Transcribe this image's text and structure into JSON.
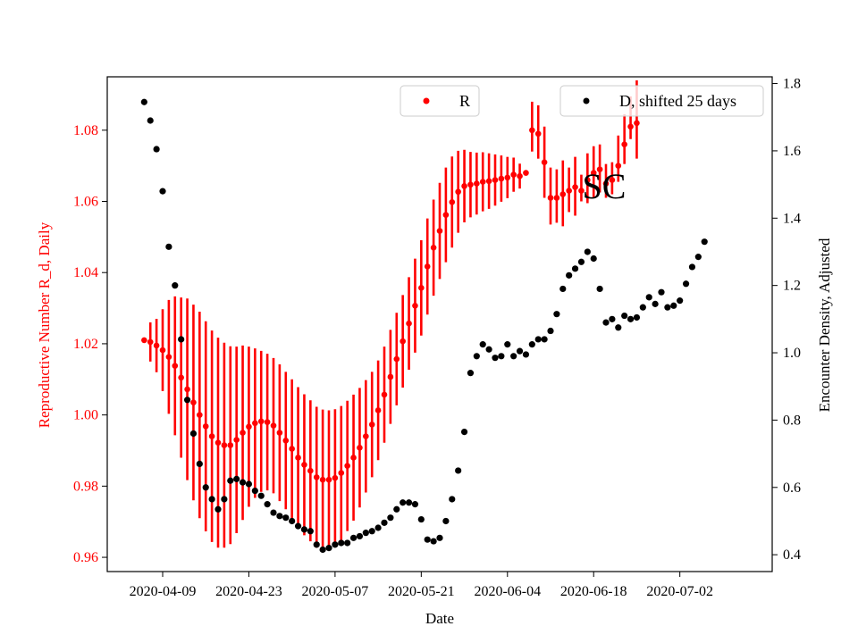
{
  "chart_data": {
    "type": "scatter",
    "annotation": "SC",
    "xlabel": "Date",
    "ylabel_left": "Reproductive Number R_d, Daily",
    "ylabel_right": "Encounter Density, Adjusted",
    "x_range": [
      "2020-03-31",
      "2020-07-17"
    ],
    "ylim_left": [
      0.956,
      1.095
    ],
    "ylim_right": [
      0.35,
      1.82
    ],
    "x_ticks": [
      "2020-04-09",
      "2020-04-23",
      "2020-05-07",
      "2020-05-21",
      "2020-06-04",
      "2020-06-18",
      "2020-07-02"
    ],
    "y_ticks_left": [
      "0.96",
      "0.98",
      "1.00",
      "1.02",
      "1.04",
      "1.06",
      "1.08"
    ],
    "y_ticks_right": [
      "0.4",
      "0.6",
      "0.8",
      "1.0",
      "1.2",
      "1.4",
      "1.6",
      "1.8"
    ],
    "colors": {
      "R": "#ff0000",
      "D": "#000000",
      "left_axis": "#ff0000",
      "right_axis": "#000000"
    },
    "legend_R": {
      "label": "R",
      "placement": "top-center"
    },
    "legend_D": {
      "label": "D, shifted 25 days",
      "placement": "top-right"
    },
    "series_R": {
      "name": "R",
      "start": "2020-04-06",
      "values": [
        1.021,
        1.0205,
        1.0195,
        1.0182,
        1.0163,
        1.0138,
        1.0105,
        1.0072,
        1.0035,
        1.0,
        0.9968,
        0.994,
        0.9922,
        0.9915,
        0.9915,
        0.993,
        0.995,
        0.9967,
        0.9977,
        0.9982,
        0.998,
        0.997,
        0.995,
        0.9928,
        0.9905,
        0.988,
        0.986,
        0.9843,
        0.9825,
        0.9818,
        0.9818,
        0.9823,
        0.9837,
        0.9857,
        0.988,
        0.9908,
        0.994,
        0.9973,
        1.0013,
        1.0057,
        1.0107,
        1.0157,
        1.0207,
        1.0257,
        1.0307,
        1.0357,
        1.0417,
        1.047,
        1.0517,
        1.0562,
        1.0598,
        1.0627,
        1.0643,
        1.0647,
        1.065,
        1.0655,
        1.0657,
        1.066,
        1.0664,
        1.0667,
        1.0675,
        1.0671,
        1.068,
        1.08,
        1.079,
        1.071,
        1.061,
        1.061,
        1.062,
        1.063,
        1.064,
        1.063,
        1.066,
        1.068,
        1.069,
        1.065,
        1.066,
        1.07,
        1.076,
        1.081,
        1.082
      ],
      "err_low": [
        0.0,
        0.0055,
        0.0075,
        0.0115,
        0.016,
        0.0195,
        0.0225,
        0.0255,
        0.0275,
        0.029,
        0.0295,
        0.0297,
        0.0295,
        0.0288,
        0.0278,
        0.0262,
        0.0245,
        0.0225,
        0.021,
        0.0198,
        0.0192,
        0.019,
        0.0192,
        0.0193,
        0.0195,
        0.0198,
        0.0198,
        0.0198,
        0.0198,
        0.0197,
        0.0195,
        0.0193,
        0.0188,
        0.0183,
        0.0177,
        0.0168,
        0.0158,
        0.0148,
        0.014,
        0.0135,
        0.0132,
        0.013,
        0.013,
        0.013,
        0.0132,
        0.0134,
        0.0135,
        0.0135,
        0.0135,
        0.0133,
        0.0128,
        0.0115,
        0.0102,
        0.0092,
        0.0087,
        0.0083,
        0.0078,
        0.0072,
        0.0065,
        0.0058,
        0.0048,
        0.0035,
        0.0,
        0.006,
        0.007,
        0.01,
        0.0075,
        0.007,
        0.009,
        0.006,
        0.008,
        0.003,
        0.0065,
        0.007,
        0.0065,
        0.004,
        0.004,
        0.0045,
        0.0055,
        0.0035,
        0.01
      ],
      "err_high": [
        0.0,
        0.0055,
        0.0075,
        0.0115,
        0.016,
        0.0195,
        0.0225,
        0.0255,
        0.0275,
        0.029,
        0.0295,
        0.0297,
        0.0295,
        0.0288,
        0.0278,
        0.0262,
        0.0245,
        0.0225,
        0.021,
        0.0198,
        0.0192,
        0.019,
        0.0192,
        0.0193,
        0.0195,
        0.0198,
        0.0198,
        0.0198,
        0.0198,
        0.0197,
        0.0195,
        0.0193,
        0.0188,
        0.0183,
        0.0177,
        0.0168,
        0.0158,
        0.0148,
        0.014,
        0.0135,
        0.0132,
        0.013,
        0.013,
        0.013,
        0.0132,
        0.0134,
        0.0135,
        0.0135,
        0.0135,
        0.0133,
        0.0128,
        0.0115,
        0.0102,
        0.0092,
        0.0087,
        0.0083,
        0.0078,
        0.0072,
        0.0065,
        0.0058,
        0.0048,
        0.0035,
        0.0,
        0.008,
        0.008,
        0.01,
        0.0085,
        0.008,
        0.0095,
        0.0065,
        0.0085,
        0.0045,
        0.0075,
        0.0075,
        0.007,
        0.0055,
        0.005,
        0.0085,
        0.0085,
        0.0085,
        0.012
      ]
    },
    "series_D": {
      "name": "D, shifted 25 days",
      "start": "2020-04-06",
      "values": [
        1.745,
        1.69,
        1.605,
        1.48,
        1.315,
        1.2,
        1.04,
        0.86,
        0.76,
        0.67,
        0.6,
        0.565,
        0.535,
        0.565,
        0.62,
        0.625,
        0.615,
        0.61,
        0.59,
        0.575,
        0.55,
        0.525,
        0.515,
        0.51,
        0.5,
        0.485,
        0.475,
        0.47,
        0.43,
        0.415,
        0.42,
        0.43,
        0.435,
        0.435,
        0.45,
        0.455,
        0.465,
        0.47,
        0.48,
        0.495,
        0.51,
        0.535,
        0.555,
        0.555,
        0.55,
        0.505,
        0.445,
        0.44,
        0.45,
        0.5,
        0.565,
        0.65,
        0.765,
        0.94,
        0.99,
        1.025,
        1.01,
        0.985,
        0.99,
        1.025,
        0.99,
        1.005,
        0.995,
        1.025,
        1.04,
        1.04,
        1.065,
        1.115,
        1.19,
        1.23,
        1.25,
        1.27,
        1.3,
        1.28,
        1.19,
        1.09,
        1.1,
        1.075,
        1.11,
        1.1,
        1.105,
        1.135,
        1.165,
        1.145,
        1.18,
        1.135,
        1.14,
        1.155,
        1.205,
        1.255,
        1.285,
        1.33
      ]
    }
  }
}
